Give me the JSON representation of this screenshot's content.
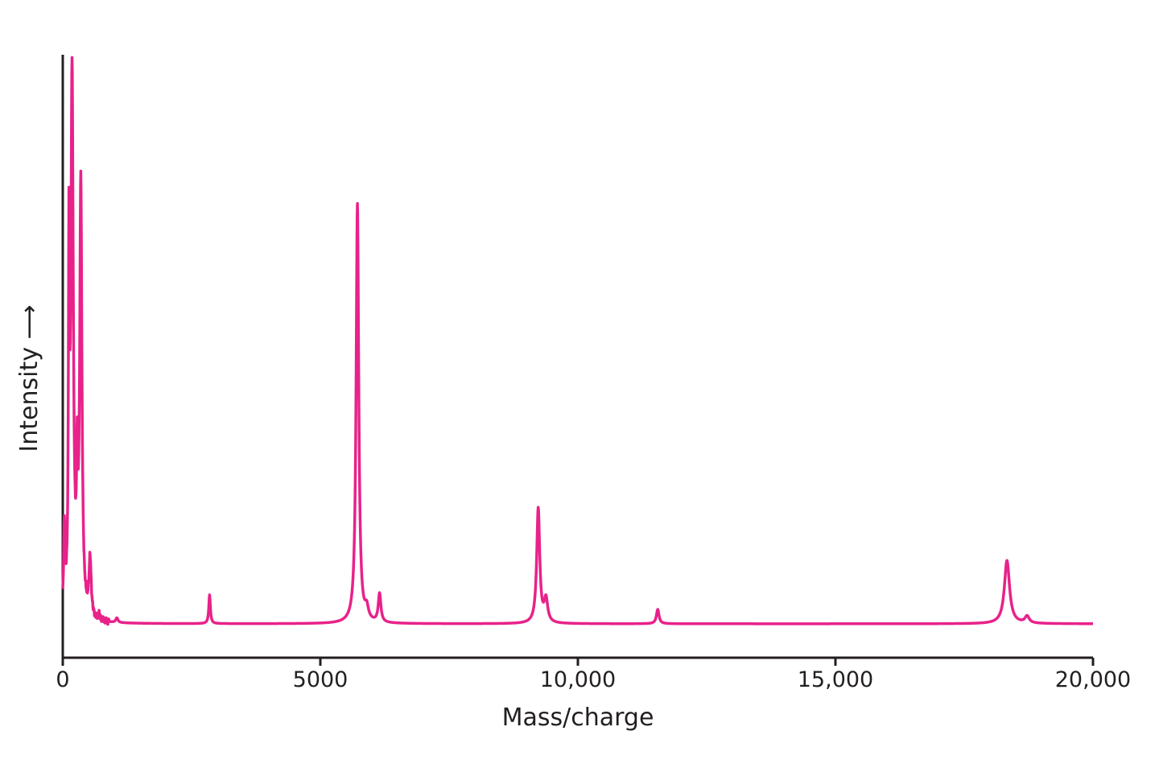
{
  "chart_data": {
    "type": "line",
    "title": "",
    "xlabel": "Mass/charge",
    "ylabel": "Intensity",
    "ylabel_arrow": "⟶",
    "xlim": [
      0,
      20000
    ],
    "ylim": [
      0,
      1
    ],
    "x_ticks": [
      0,
      5000,
      10000,
      15000,
      20000
    ],
    "x_tick_labels": [
      "0",
      "5000",
      "10,000",
      "15,000",
      "20,000"
    ],
    "grid": false,
    "line_color": "#e8228a",
    "baseline": 0.01,
    "series": [
      {
        "peaks": [
          {
            "x": 30,
            "y": 0.14,
            "w": 15
          },
          {
            "x": 120,
            "y": 0.58,
            "w": 12
          },
          {
            "x": 180,
            "y": 0.94,
            "w": 28
          },
          {
            "x": 280,
            "y": 0.2,
            "w": 15
          },
          {
            "x": 350,
            "y": 0.75,
            "w": 25
          },
          {
            "x": 530,
            "y": 0.1,
            "w": 25
          },
          {
            "x": 700,
            "y": 0.01,
            "w": 20
          },
          {
            "x": 1050,
            "y": 0.008,
            "w": 25
          },
          {
            "x": 2850,
            "y": 0.05,
            "w": 18
          },
          {
            "x": 5720,
            "y": 0.73,
            "w": 30
          },
          {
            "x": 5900,
            "y": 0.02,
            "w": 40
          },
          {
            "x": 6150,
            "y": 0.05,
            "w": 30
          },
          {
            "x": 9230,
            "y": 0.2,
            "w": 35
          },
          {
            "x": 9380,
            "y": 0.04,
            "w": 40
          },
          {
            "x": 11550,
            "y": 0.025,
            "w": 30
          },
          {
            "x": 18330,
            "y": 0.11,
            "w": 60
          },
          {
            "x": 18720,
            "y": 0.012,
            "w": 50
          }
        ]
      }
    ]
  }
}
